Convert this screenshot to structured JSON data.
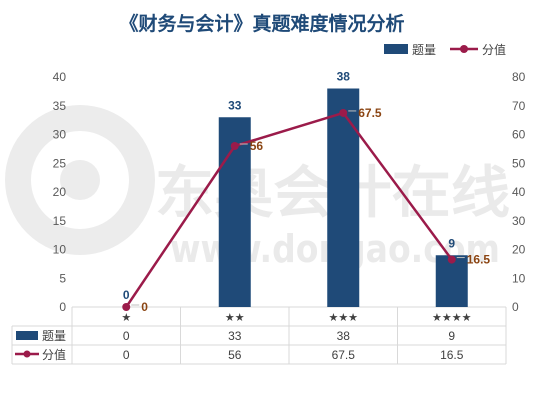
{
  "watermark": {
    "brand": "东奥会计在线",
    "url": "www.dongao.com"
  },
  "legend": {
    "bar_label": "题量",
    "line_label": "分值"
  },
  "table": {
    "row1_header": "题量",
    "row2_header": "分值"
  },
  "chart_data": {
    "type": "bar",
    "title": "《财务与会计》真题难度情况分析",
    "categories": [
      "★",
      "★★",
      "★★★",
      "★★★★"
    ],
    "series": [
      {
        "name": "题量",
        "type": "bar",
        "axis": "left",
        "values": [
          0,
          33,
          38,
          9
        ],
        "labels": [
          "0",
          "33",
          "38",
          "9"
        ],
        "color": "#1f4a78"
      },
      {
        "name": "分值",
        "type": "line",
        "axis": "right",
        "values": [
          0,
          56,
          67.5,
          16.5
        ],
        "labels": [
          "0",
          "56",
          "67.5",
          "16.5"
        ],
        "color": "#9b1b4a"
      }
    ],
    "y_left": {
      "ylim": [
        0,
        40
      ],
      "ticks": [
        "0",
        "5",
        "10",
        "15",
        "20",
        "25",
        "30",
        "35",
        "40"
      ]
    },
    "y_right": {
      "ylim": [
        0,
        80
      ],
      "ticks": [
        "0",
        "10",
        "20",
        "30",
        "40",
        "50",
        "60",
        "70",
        "80"
      ]
    },
    "grid": false,
    "legend_position": "top-right",
    "data_table": true
  }
}
